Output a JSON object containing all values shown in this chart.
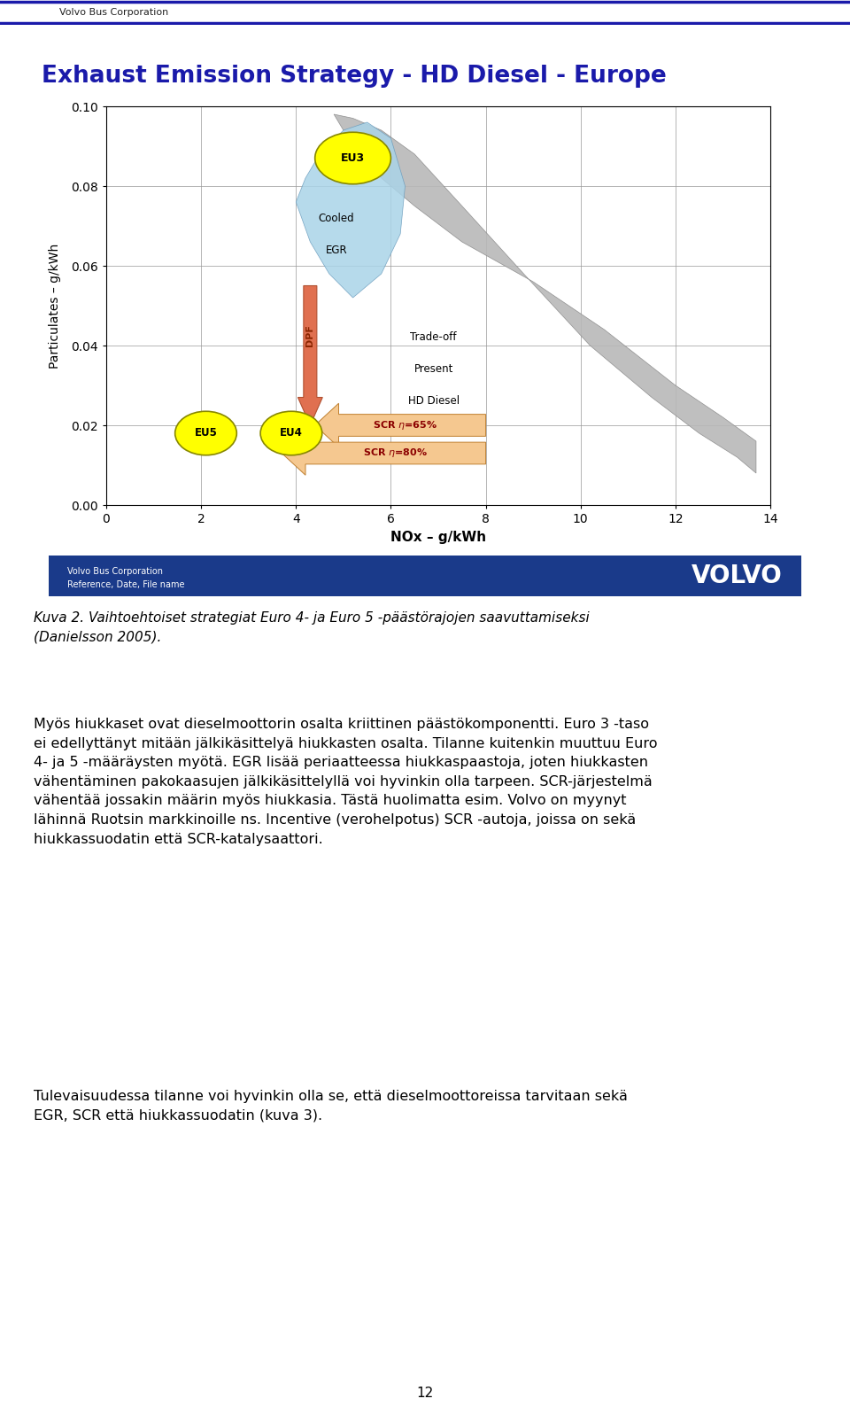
{
  "title": "Exhaust Emission Strategy - HD Diesel - Europe",
  "header_company": "Volvo Bus Corporation",
  "xlabel": "NOx – g/kWh",
  "ylabel": "Particulates – g/kWh",
  "xlim": [
    0,
    14
  ],
  "ylim": [
    0,
    0.1
  ],
  "xticks": [
    0,
    2,
    4,
    6,
    8,
    10,
    12,
    14
  ],
  "yticks": [
    0,
    0.02,
    0.04,
    0.06,
    0.08,
    0.1
  ],
  "title_color": "#1a1aaa",
  "header_line_color": "#1a1aaa",
  "footer_bg_color": "#1a3a8a",
  "footer_text_left1": "Volvo Bus Corporation",
  "footer_text_left2": "Reference, Date, File name",
  "footer_text_right": "VOLVO",
  "caption": "Kuva 2. Vaihtoehtoiset strategiat Euro 4- ja Euro 5 -päästörajojen saavuttamiseksi\n(Danielsson 2005).",
  "body_para1": "Myös hiukkaset ovat dieselmoottorin osalta kriittinen päästökomponentti. Euro 3 -taso\nei edellyttänyt mitään jälkikäsittelyä hiukkasten osalta. Tilanne kuitenkin muuttuu Euro\n4- ja 5 -määräysten myötä. EGR lisää periaatteessa hiukkaspaastoja, joten hiukkasten\nvähentäminen pakokaasujen jälkikäsittelyllä voi hyvinkin olla tarpeen. SCR-järjestelmä\nvähentää jossakin määrin myös hiukkasia. Tästä huolimatta esim. Volvo on myynyt\nlähinnä Ruotsin markkinoille ns. Incentive (verohelpotus) SCR -autoja, joissa on sekä\nhiukkassuodatin että SCR-katalysaattori.",
  "body_para2": "Tulevaisuudessa tilanne voi hyvinkin olla se, että dieselmoottoreissa tarvitaan sekä\nEGR, SCR että hiukkassuodatin (kuva 3).",
  "page_number": "12",
  "bg_color": "#FFFFFF"
}
